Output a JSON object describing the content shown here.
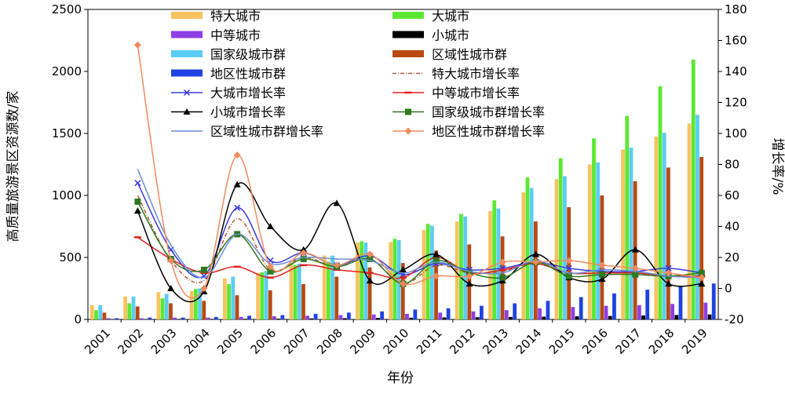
{
  "chart_data": {
    "type": "bar",
    "xlabel": "年份",
    "ylabel_left": "高质量旅游景区资源数/家",
    "ylabel_right": "增长率/%",
    "ylim_left": [
      0,
      2500
    ],
    "yticks_left": [
      0,
      500,
      1000,
      1500,
      2000,
      2500
    ],
    "ylim_right": [
      -20,
      180
    ],
    "yticks_right": [
      -20,
      0,
      20,
      40,
      60,
      80,
      100,
      120,
      140,
      160,
      180
    ],
    "categories": [
      "2001",
      "2002",
      "2003",
      "2004",
      "2005",
      "2006",
      "2007",
      "2008",
      "2009",
      "2010",
      "2011",
      "2012",
      "2013",
      "2014",
      "2015",
      "2016",
      "2017",
      "2018",
      "2019"
    ],
    "bar_series": [
      {
        "name": "特大城市",
        "color": "#f7c35f",
        "values": [
          115,
          185,
          220,
          230,
          330,
          375,
          450,
          515,
          620,
          625,
          720,
          790,
          875,
          1025,
          1130,
          1250,
          1370,
          1475,
          1580
        ]
      },
      {
        "name": "大城市",
        "color": "#5be832",
        "values": [
          75,
          130,
          170,
          245,
          285,
          380,
          440,
          465,
          630,
          650,
          770,
          850,
          960,
          1145,
          1300,
          1460,
          1640,
          1880,
          2095
        ]
      },
      {
        "name": "国家级城市群",
        "color": "#5bcdf5",
        "values": [
          115,
          185,
          205,
          250,
          345,
          390,
          450,
          515,
          620,
          640,
          755,
          830,
          895,
          1060,
          1155,
          1265,
          1385,
          1505,
          1650
        ]
      },
      {
        "name": "区域性城市群",
        "color": "#b84a12",
        "values": [
          55,
          105,
          130,
          150,
          195,
          235,
          285,
          345,
          420,
          455,
          555,
          605,
          670,
          790,
          905,
          1000,
          1115,
          1225,
          1310
        ]
      },
      {
        "name": "中等城市",
        "color": "#8e3ee6",
        "values": [
          10,
          10,
          15,
          15,
          20,
          25,
          30,
          35,
          40,
          45,
          55,
          65,
          75,
          90,
          100,
          110,
          115,
          125,
          135
        ]
      },
      {
        "name": "小城市",
        "color": "#000000",
        "values": [
          3,
          3,
          4,
          4,
          5,
          6,
          8,
          10,
          12,
          14,
          16,
          18,
          20,
          22,
          25,
          28,
          32,
          36,
          40
        ]
      },
      {
        "name": "地区性城市群",
        "color": "#1f43e0",
        "values": [
          10,
          15,
          15,
          20,
          30,
          35,
          45,
          55,
          65,
          80,
          90,
          110,
          130,
          150,
          180,
          210,
          240,
          270,
          290
        ]
      }
    ],
    "line_series": [
      {
        "name": "特大城市增长率",
        "color": "#b05a3a",
        "dash": "5,2,1,2",
        "marker": "none",
        "values": [
          null,
          60,
          18,
          5,
          45,
          12,
          20,
          14,
          19,
          3,
          15,
          10,
          11,
          17,
          10,
          10,
          10,
          8,
          7
        ]
      },
      {
        "name": "大城市增长率",
        "color": "#3a3ae0",
        "dash": "",
        "marker": "x",
        "values": [
          null,
          68,
          25,
          8,
          52,
          18,
          23,
          15,
          21,
          9,
          16,
          12,
          13,
          17,
          13,
          11,
          11,
          13,
          10
        ]
      },
      {
        "name": "中等城市增长率",
        "color": "#e02020",
        "dash": "",
        "marker": "dash",
        "values": [
          null,
          33,
          19,
          10,
          14,
          7,
          15,
          12,
          10,
          7,
          20,
          10,
          12,
          16,
          10,
          10,
          10,
          8,
          8
        ]
      },
      {
        "name": "小城市增长率",
        "color": "#000000",
        "dash": "",
        "marker": "triangle",
        "values": [
          null,
          50,
          0,
          -2,
          67,
          40,
          25,
          55,
          5,
          12,
          22,
          3,
          5,
          22,
          7,
          6,
          25,
          3,
          3
        ]
      },
      {
        "name": "国家级城市群增长率",
        "color": "#2f7a1e",
        "dash": "",
        "marker": "square",
        "values": [
          null,
          56,
          19,
          12,
          35,
          11,
          19,
          14,
          19,
          3,
          18,
          10,
          7,
          17,
          8,
          9,
          9,
          8,
          10
        ]
      },
      {
        "name": "区域性城市群增长率",
        "color": "#6a8fd8",
        "dash": "",
        "marker": "none",
        "values": [
          null,
          77,
          28,
          7,
          35,
          16,
          20,
          19,
          18,
          10,
          17,
          11,
          10,
          18,
          10,
          12,
          11,
          8,
          7
        ]
      },
      {
        "name": "地区性城市群增长率",
        "color": "#f08a5d",
        "dash": "",
        "marker": "diamond",
        "values": [
          null,
          157,
          18,
          0,
          86,
          14,
          23,
          15,
          22,
          3,
          8,
          8,
          17,
          17,
          18,
          15,
          13,
          10,
          7
        ]
      }
    ],
    "legend_order": [
      "特大城市",
      "大城市",
      "中等城市",
      "小城市",
      "国家级城市群",
      "区域性城市群",
      "地区性城市群",
      "特大城市增长率",
      "大城市增长率",
      "中等城市增长率",
      "小城市增长率",
      "国家级城市群增长率",
      "区域性城市群增长率",
      "地区性城市群增长率"
    ],
    "legend_position": "top-center"
  }
}
